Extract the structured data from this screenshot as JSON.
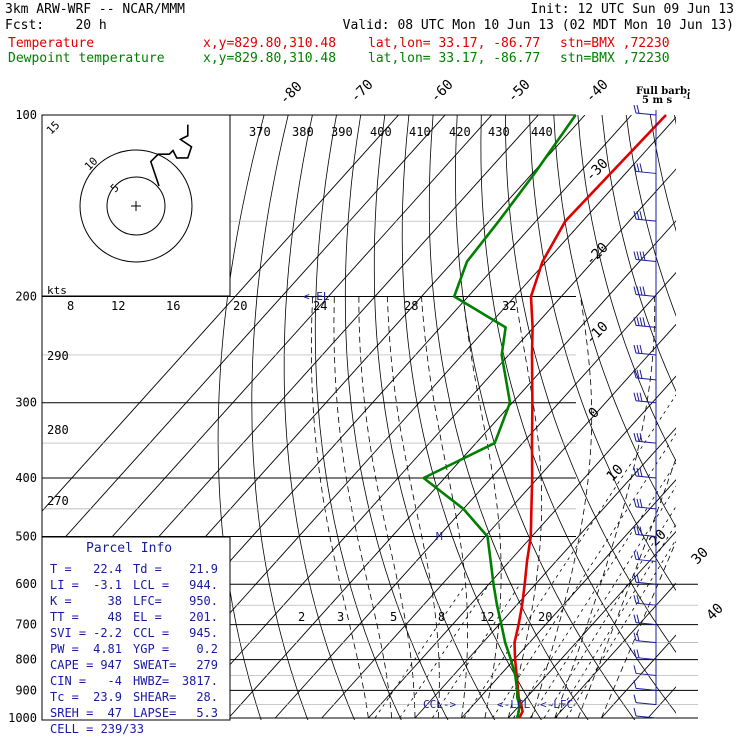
{
  "header": {
    "model": "3km ARW-WRF -- NCAR/MMM",
    "init": "Init: 12 UTC Sun 09 Jun 13",
    "fcst": "Fcst:    20 h",
    "valid": "Valid: 08 UTC Mon 10 Jun 13 (02 MDT Mon 10 Jun 13)",
    "temperature_line": {
      "label": "Temperature",
      "xy": "x,y=829.80,310.48",
      "latlon": "lat,lon= 33.17, -86.77",
      "stn": "stn=BMX ,72230",
      "color": "#e00000"
    },
    "dewpoint_line": {
      "label": "Dewpoint temperature",
      "xy": "x,y=829.80,310.48",
      "latlon": "lat,lon= 33.17, -86.77",
      "stn": "stn=BMX ,72230",
      "color": "#008000"
    }
  },
  "barb_legend": {
    "title": "Full barb:",
    "value": "5 m s",
    "exp": "-1"
  },
  "hodograph": {
    "units": "kts",
    "ring_labels": [
      "5",
      "10",
      "15"
    ]
  },
  "parcel_info": {
    "title": "Parcel Info",
    "rows": [
      [
        "T  =",
        "22.4",
        "Td =",
        "21.9"
      ],
      [
        "LI =",
        "-3.1",
        "LCL =",
        "944."
      ],
      [
        "K  =",
        "38",
        "LFC=",
        "950."
      ],
      [
        "TT =",
        "48",
        "EL  =",
        "201."
      ],
      [
        "SVI =",
        "-2.2",
        "CCL =",
        "945."
      ],
      [
        "PW =",
        "4.81",
        "YGP =",
        "0.2"
      ],
      [
        "CAPE =",
        "947",
        "SWEAT=",
        "279"
      ],
      [
        "CIN =",
        "-4",
        "HWBZ=",
        "3817."
      ],
      [
        "Tc =",
        "23.9",
        "SHEAR=",
        "28."
      ],
      [
        "SREH =",
        "47",
        "LAPSE=",
        "5.3"
      ],
      [
        "CELL = 239/33",
        "",
        "",
        ""
      ]
    ]
  },
  "markers": {
    "ccl": "CCL->",
    "lcl": "<-LCL",
    "lfc": "<-LFC",
    "el": "<-EL",
    "m": "M"
  },
  "chart_data": {
    "type": "line",
    "title": "",
    "pressure_levels": [
      100,
      200,
      300,
      400,
      500,
      600,
      700,
      800,
      900,
      1000
    ],
    "isotherm_labels": [
      -80,
      -70,
      -60,
      -50,
      -40,
      -30,
      -20,
      -10,
      0,
      10,
      20,
      30,
      40
    ],
    "theta_e_labels": [
      370,
      380,
      390,
      400,
      410,
      420,
      430,
      440
    ],
    "theta_labels_left": [
      290,
      280,
      270
    ],
    "mixing_ratio_upper": [
      8,
      12,
      16,
      20,
      24,
      28,
      32
    ],
    "mixing_ratio_lower": [
      2,
      3,
      5,
      8,
      12,
      20
    ],
    "series": [
      {
        "name": "Temperature",
        "color": "#e00000",
        "p": [
          1000,
          975,
          950,
          925,
          900,
          850,
          800,
          750,
          700,
          650,
          600,
          550,
          500,
          450,
          400,
          350,
          300,
          250,
          225,
          200,
          175,
          150,
          125,
          100
        ],
        "t": [
          22.4,
          21.8,
          20.2,
          18.3,
          16.8,
          13.6,
          10.2,
          6.8,
          4.2,
          1.2,
          -2.3,
          -6.2,
          -10.2,
          -15.4,
          -21.2,
          -28.0,
          -35.7,
          -45.0,
          -50.2,
          -56.5,
          -60.8,
          -63.7,
          -63.2,
          -62.6
        ]
      },
      {
        "name": "Dewpoint temperature",
        "color": "#008000",
        "p": [
          1000,
          975,
          950,
          925,
          900,
          850,
          800,
          750,
          700,
          650,
          600,
          550,
          500,
          450,
          400,
          350,
          300,
          250,
          225,
          200,
          175,
          150,
          125,
          100
        ],
        "t": [
          21.9,
          21.0,
          19.8,
          18.0,
          16.6,
          13.3,
          9.3,
          4.8,
          0.5,
          -4.2,
          -9.0,
          -14.0,
          -19.5,
          -30.0,
          -44.5,
          -36.0,
          -40.5,
          -51.5,
          -56.0,
          -73.0,
          -77.0,
          -78.0,
          -79.5,
          -82.0
        ]
      }
    ],
    "hodograph_track": {
      "u": [
        4,
        6,
        9,
        10,
        11,
        14,
        15,
        12,
        14,
        14
      ],
      "v": [
        12,
        14,
        14,
        15,
        13,
        13,
        16,
        18,
        19,
        22
      ]
    },
    "wind_barbs": {
      "p": [
        100,
        125,
        150,
        175,
        200,
        225,
        250,
        275,
        300,
        350,
        400,
        450,
        500,
        550,
        600,
        650,
        700,
        750,
        800,
        850,
        900,
        950,
        1000
      ],
      "speed_ms": [
        10,
        15,
        15,
        20,
        20,
        20,
        15,
        15,
        15,
        15,
        15,
        15,
        15,
        10,
        10,
        10,
        10,
        10,
        10,
        5,
        5,
        5,
        5
      ]
    }
  }
}
